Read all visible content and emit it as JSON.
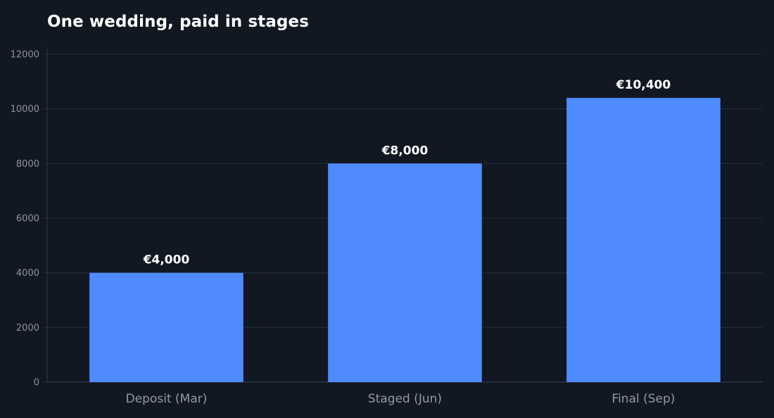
{
  "chart_data": {
    "type": "bar",
    "title": "One wedding, paid in stages",
    "xlabel": "",
    "ylabel": "",
    "categories": [
      "Deposit (Mar)",
      "Staged (Jun)",
      "Final (Sep)"
    ],
    "values": [
      4000,
      8000,
      10400
    ],
    "data_labels": [
      "€4,000",
      "€8,000",
      "€10,400"
    ],
    "ylim": [
      0,
      12000
    ],
    "yticks": [
      0,
      2000,
      4000,
      6000,
      8000,
      10000,
      12000
    ],
    "grid": true,
    "legend": "none",
    "colors": {
      "bar": "#4f8bff",
      "background": "#111821",
      "grid": "#1f2a36",
      "axis": "#2c3846"
    }
  }
}
